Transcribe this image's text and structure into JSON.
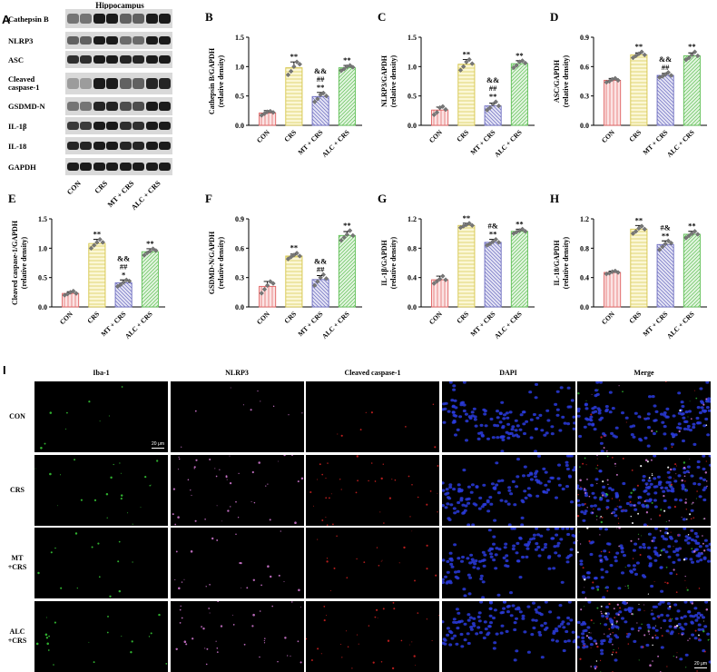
{
  "panel_a": {
    "letter": "A",
    "title": "Hippocampus",
    "rows": [
      "Cathepsin B",
      "NLRP3",
      "ASC",
      "Cleaved caspase-1",
      "GSDMD-N",
      "IL-1β",
      "IL-18",
      "GAPDH"
    ],
    "groups": [
      "CON",
      "CRS",
      "MT + CRS",
      "ALC + CRS"
    ]
  },
  "chart_data": [
    {
      "panel": "B",
      "type": "bar",
      "categories": [
        "CON",
        "CRS",
        "MT + CRS",
        "ALC + CRS"
      ],
      "values": [
        0.21,
        0.98,
        0.49,
        0.98
      ],
      "errors": [
        0.04,
        0.1,
        0.07,
        0.04
      ],
      "ylabel": "Cathepsin B/GAPDH\n(relative density)",
      "ylim": [
        0,
        1.5
      ],
      "yticks": [
        0,
        0.5,
        1.0,
        1.5
      ],
      "annotations": [
        [
          "",
          "",
          "",
          ""
        ],
        [
          "**",
          "",
          "",
          ""
        ],
        [
          "&&",
          "##",
          "**",
          ""
        ],
        [
          "**",
          "",
          "",
          ""
        ]
      ],
      "points": [
        [
          0.17,
          0.2,
          0.23,
          0.24,
          0.22
        ],
        [
          0.86,
          0.92,
          1.0,
          1.08,
          1.04
        ],
        [
          0.4,
          0.45,
          0.52,
          0.55,
          0.5
        ],
        [
          0.93,
          0.96,
          1.0,
          1.02,
          0.99
        ]
      ]
    },
    {
      "panel": "C",
      "type": "bar",
      "categories": [
        "CON",
        "CRS",
        "MT + CRS",
        "ALC + CRS"
      ],
      "values": [
        0.26,
        1.04,
        0.33,
        1.05
      ],
      "errors": [
        0.05,
        0.08,
        0.05,
        0.05
      ],
      "ylabel": "NLRP3/GAPDH\n(relative density)",
      "ylim": [
        0,
        1.5
      ],
      "yticks": [
        0,
        0.5,
        1.0,
        1.5
      ],
      "annotations": [
        [
          "",
          "",
          "",
          ""
        ],
        [
          "**",
          "",
          "",
          ""
        ],
        [
          "&&",
          "##",
          "**",
          ""
        ],
        [
          "**",
          "",
          "",
          ""
        ]
      ],
      "points": [
        [
          0.18,
          0.22,
          0.3,
          0.32,
          0.27
        ],
        [
          0.94,
          1.0,
          1.08,
          1.12,
          1.05
        ],
        [
          0.26,
          0.3,
          0.36,
          0.4,
          0.33
        ],
        [
          0.98,
          1.02,
          1.08,
          1.1,
          1.06
        ]
      ]
    },
    {
      "panel": "D",
      "type": "bar",
      "categories": [
        "CON",
        "CRS",
        "MT + CRS",
        "ALC + CRS"
      ],
      "values": [
        0.46,
        0.72,
        0.51,
        0.71
      ],
      "errors": [
        0.02,
        0.02,
        0.02,
        0.03
      ],
      "ylabel": "ASC/GAPDH\n(relative density)",
      "ylim": [
        0,
        0.9
      ],
      "yticks": [
        0,
        0.3,
        0.6,
        0.9
      ],
      "annotations": [
        [
          "",
          "",
          "",
          ""
        ],
        [
          "**",
          "",
          "",
          ""
        ],
        [
          "&&",
          "##",
          "",
          ""
        ],
        [
          "**",
          "",
          "",
          ""
        ]
      ],
      "points": [
        [
          0.44,
          0.45,
          0.47,
          0.48,
          0.46
        ],
        [
          0.69,
          0.71,
          0.73,
          0.75,
          0.72
        ],
        [
          0.49,
          0.5,
          0.52,
          0.54,
          0.51
        ],
        [
          0.67,
          0.69,
          0.72,
          0.75,
          0.71
        ]
      ]
    },
    {
      "panel": "E",
      "type": "bar",
      "categories": [
        "CON",
        "CRS",
        "MT + CRS",
        "ALC + CRS"
      ],
      "values": [
        0.23,
        1.08,
        0.41,
        0.94
      ],
      "errors": [
        0.03,
        0.07,
        0.05,
        0.05
      ],
      "ylabel": "Cleaved caspase-1/GAPDH\n(relative density)",
      "ylim": [
        0,
        1.5
      ],
      "yticks": [
        0,
        0.5,
        1.0,
        1.5
      ],
      "annotations": [
        [
          "",
          "",
          "",
          ""
        ],
        [
          "**",
          "",
          "",
          ""
        ],
        [
          "&&",
          "##",
          "*",
          ""
        ],
        [
          "**",
          "",
          "",
          ""
        ]
      ],
      "points": [
        [
          0.2,
          0.22,
          0.25,
          0.27,
          0.23
        ],
        [
          1.0,
          1.05,
          1.1,
          1.15,
          1.1
        ],
        [
          0.35,
          0.38,
          0.42,
          0.46,
          0.44
        ],
        [
          0.88,
          0.92,
          0.95,
          0.99,
          0.96
        ]
      ]
    },
    {
      "panel": "F",
      "type": "bar",
      "categories": [
        "CON",
        "CRS",
        "MT + CRS",
        "ALC + CRS"
      ],
      "values": [
        0.21,
        0.52,
        0.28,
        0.73
      ],
      "errors": [
        0.05,
        0.02,
        0.04,
        0.04
      ],
      "ylabel": "GSDMD-N/GAPDH\n(relative density)",
      "ylim": [
        0,
        0.9
      ],
      "yticks": [
        0,
        0.3,
        0.6,
        0.9
      ],
      "annotations": [
        [
          "",
          "",
          "",
          ""
        ],
        [
          "**",
          "",
          "",
          ""
        ],
        [
          "&&",
          "##",
          "",
          ""
        ],
        [
          "**",
          "",
          "",
          ""
        ]
      ],
      "points": [
        [
          0.14,
          0.18,
          0.22,
          0.26,
          0.24
        ],
        [
          0.49,
          0.51,
          0.53,
          0.55,
          0.52
        ],
        [
          0.22,
          0.26,
          0.3,
          0.33,
          0.29
        ],
        [
          0.68,
          0.71,
          0.74,
          0.78,
          0.73
        ]
      ]
    },
    {
      "panel": "G",
      "type": "bar",
      "categories": [
        "CON",
        "CRS",
        "MT + CRS",
        "ALC + CRS"
      ],
      "values": [
        0.37,
        1.11,
        0.88,
        1.03
      ],
      "errors": [
        0.05,
        0.03,
        0.04,
        0.03
      ],
      "ylabel": "IL-1β/GAPDH\n(relative density)",
      "ylim": [
        0,
        1.2
      ],
      "yticks": [
        0,
        0.4,
        0.8,
        1.2
      ],
      "annotations": [
        [
          "",
          "",
          "",
          ""
        ],
        [
          "**",
          "",
          "",
          ""
        ],
        [
          "#&",
          "**",
          "",
          ""
        ],
        [
          "**",
          "",
          "",
          ""
        ]
      ],
      "points": [
        [
          0.32,
          0.35,
          0.38,
          0.42,
          0.37
        ],
        [
          1.08,
          1.1,
          1.12,
          1.14,
          1.11
        ],
        [
          0.84,
          0.86,
          0.89,
          0.92,
          0.88
        ],
        [
          1.0,
          1.02,
          1.04,
          1.06,
          1.03
        ]
      ]
    },
    {
      "panel": "H",
      "type": "bar",
      "categories": [
        "CON",
        "CRS",
        "MT + CRS",
        "ALC + CRS"
      ],
      "values": [
        0.47,
        1.06,
        0.85,
        0.99
      ],
      "errors": [
        0.02,
        0.05,
        0.05,
        0.04
      ],
      "ylabel": "IL-18/GAPDH\n(relative density)",
      "ylim": [
        0,
        1.2
      ],
      "yticks": [
        0,
        0.4,
        0.8,
        1.2
      ],
      "annotations": [
        [
          "",
          "",
          "",
          ""
        ],
        [
          "**",
          "",
          "",
          ""
        ],
        [
          "#&",
          "**",
          "",
          ""
        ],
        [
          "**",
          "",
          "",
          ""
        ]
      ],
      "points": [
        [
          0.45,
          0.46,
          0.48,
          0.49,
          0.47
        ],
        [
          1.0,
          1.03,
          1.07,
          1.1,
          1.06
        ],
        [
          0.78,
          0.82,
          0.86,
          0.9,
          0.87
        ],
        [
          0.94,
          0.97,
          1.0,
          1.03,
          0.99
        ]
      ]
    }
  ],
  "bar_styles": [
    {
      "fill": "#fbe3e3",
      "stroke": "#e06060",
      "pattern": "vertical"
    },
    {
      "fill": "#fbf7d6",
      "stroke": "#d6c64a",
      "pattern": "horizontal"
    },
    {
      "fill": "#e4e4f5",
      "stroke": "#6a6abf",
      "pattern": "diagonal-back"
    },
    {
      "fill": "#e3f5e0",
      "stroke": "#5fbf55",
      "pattern": "diagonal"
    }
  ],
  "panel_i": {
    "letter": "I",
    "columns": [
      "Iba-1",
      "NLRP3",
      "Cleaved caspase-1",
      "DAPI",
      "Merge"
    ],
    "rows": [
      "CON",
      "CRS",
      "MT\n+CRS",
      "ALC\n+CRS"
    ],
    "scale_bar": "20 μm",
    "channel_colors": [
      "#35c435",
      "#d77ad7",
      "#d62222",
      "#2a3bdc",
      "#ffffff"
    ],
    "signal_levels": [
      0.15,
      0.9,
      0.45,
      0.8
    ]
  }
}
